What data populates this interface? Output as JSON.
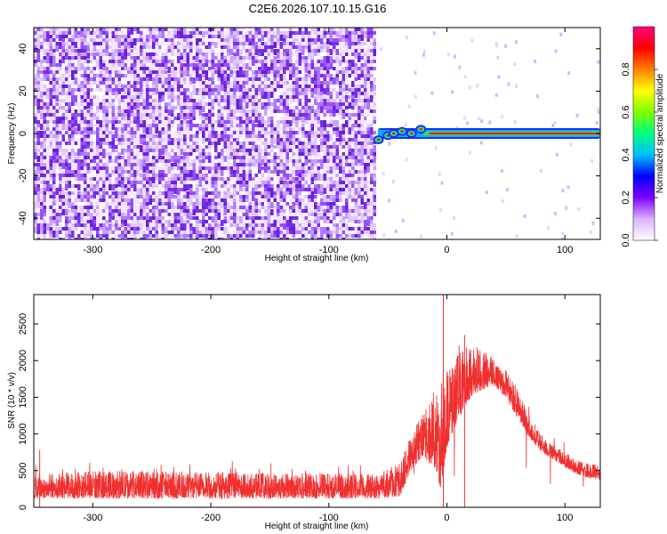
{
  "title": "C2E6.2026.107.10.15.G16",
  "chart_data": [
    {
      "type": "heatmap",
      "xlabel": "Height of straight line (km)",
      "ylabel": "Frequency (Hz)",
      "xlim": [
        -350,
        130
      ],
      "ylim": [
        -50,
        50
      ],
      "xticks": [
        -300,
        -200,
        -100,
        0,
        100
      ],
      "yticks": [
        -40,
        -20,
        0,
        20,
        40
      ],
      "noise_region_x": [
        -350,
        -60
      ],
      "signal_region_x": [
        -60,
        130
      ],
      "signal_frequency_hz": 0,
      "colorbar": {
        "label": "Normalized spectral amplitude",
        "range": [
          0,
          1
        ],
        "ticks": [
          0.0,
          0.2,
          0.4,
          0.6,
          0.8
        ],
        "colors": [
          "#ffffff",
          "#d9b3ff",
          "#8000ff",
          "#0000ff",
          "#00c0ff",
          "#00ff80",
          "#80ff00",
          "#ffff00",
          "#ff8000",
          "#ff0000",
          "#ff0080"
        ]
      },
      "grid": false
    },
    {
      "type": "line",
      "xlabel": "Height of straight line (km)",
      "ylabel": "SNR (10 * v/v)",
      "xlim": [
        -350,
        130
      ],
      "ylim": [
        0,
        2900
      ],
      "xticks": [
        -300,
        -200,
        -100,
        0,
        100
      ],
      "yticks": [
        0,
        500,
        1000,
        1500,
        2000,
        2500
      ],
      "color": "#f03030",
      "grid": false,
      "series": [
        {
          "name": "",
          "x": [
            -350,
            -300,
            -250,
            -200,
            -150,
            -100,
            -60,
            -40,
            -30,
            -20,
            -10,
            -5,
            0,
            10,
            20,
            30,
            40,
            50,
            60,
            70,
            80,
            90,
            100,
            110,
            120,
            130
          ],
          "lower": [
            120,
            120,
            120,
            120,
            120,
            120,
            120,
            150,
            500,
            700,
            500,
            250,
            800,
            1200,
            1500,
            1600,
            1650,
            1500,
            1200,
            950,
            750,
            650,
            550,
            450,
            400,
            380
          ],
          "upper": [
            450,
            500,
            500,
            480,
            480,
            470,
            450,
            600,
            1000,
            1300,
            1500,
            1700,
            1900,
            2100,
            2250,
            2150,
            2050,
            1900,
            1600,
            1250,
            1000,
            850,
            750,
            650,
            600,
            580
          ],
          "spikes": [
            {
              "x": -3,
              "y": 2900
            },
            {
              "x": -345,
              "y": 780
            },
            {
              "x": 15,
              "y": 2350
            }
          ]
        }
      ]
    }
  ]
}
